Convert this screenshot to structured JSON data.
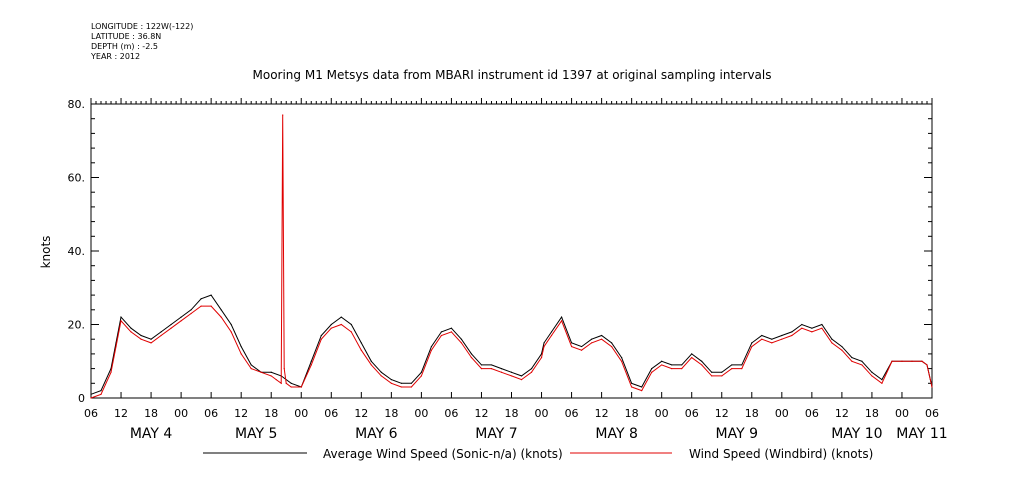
{
  "header": {
    "longitude": "LONGITUDE : 122W(-122)",
    "latitude": "LATITUDE : 36.8N",
    "depth": "DEPTH (m) : -2.5",
    "year": "YEAR : 2012"
  },
  "colors": {
    "black_series": "#000000",
    "red_series": "#e00000"
  },
  "chart_data": {
    "type": "line",
    "title": "Mooring M1 Metsys data from MBARI instrument id 1397 at original sampling intervals",
    "ylabel": "knots",
    "xlabel": "",
    "ylim": [
      0,
      80
    ],
    "xlim_hours": [
      0,
      168
    ],
    "y_ticks": [
      "0",
      "20.",
      "40.",
      "60.",
      "80."
    ],
    "hour_tick_labels": [
      "06",
      "12",
      "18",
      "00",
      "06",
      "12",
      "18",
      "00",
      "06",
      "12",
      "18",
      "00",
      "06",
      "12",
      "18",
      "00",
      "06",
      "12",
      "18",
      "00",
      "06",
      "12",
      "18",
      "00",
      "06",
      "12",
      "18",
      "00",
      "06"
    ],
    "day_labels": [
      {
        "label": "MAY  4",
        "hour": 12
      },
      {
        "label": "MAY  5",
        "hour": 33
      },
      {
        "label": "MAY  6",
        "hour": 57
      },
      {
        "label": "MAY  7",
        "hour": 81
      },
      {
        "label": "MAY  8",
        "hour": 105
      },
      {
        "label": "MAY  9",
        "hour": 129
      },
      {
        "label": "MAY 10",
        "hour": 153
      },
      {
        "label": "MAY 11",
        "hour": 166
      }
    ],
    "series": [
      {
        "name": "Average Wind Speed (Sonic-n/a) (knots)",
        "color": "#000000",
        "x_hours": [
          0,
          2,
          4,
          5,
          6,
          8,
          10,
          12,
          14,
          16,
          18,
          20,
          22,
          24,
          26,
          28,
          30,
          32,
          34,
          36,
          38,
          40,
          42,
          44,
          46,
          48,
          50,
          52,
          54,
          56,
          58,
          60,
          62,
          64,
          66,
          68,
          70,
          72,
          74,
          76,
          78,
          80,
          82,
          84,
          86,
          88,
          90,
          90.5,
          92,
          94,
          96,
          98,
          100,
          102,
          104,
          106,
          108,
          110,
          112,
          114,
          116,
          118,
          120,
          122,
          124,
          126,
          128,
          130,
          132,
          134,
          136,
          138,
          140,
          142,
          144,
          146,
          148,
          150,
          152,
          154,
          156,
          158,
          160,
          162,
          164,
          166,
          167,
          168
        ],
        "y": [
          1,
          2,
          8,
          15,
          22,
          19,
          17,
          16,
          18,
          20,
          22,
          24,
          27,
          28,
          24,
          20,
          14,
          9,
          7,
          7,
          6,
          4,
          3,
          10,
          17,
          20,
          22,
          20,
          15,
          10,
          7,
          5,
          4,
          4,
          7,
          14,
          18,
          19,
          16,
          12,
          9,
          9,
          8,
          7,
          6,
          8,
          12,
          15,
          18,
          22,
          15,
          14,
          16,
          17,
          15,
          11,
          4,
          3,
          8,
          10,
          9,
          9,
          12,
          10,
          7,
          7,
          9,
          9,
          15,
          17,
          16,
          17,
          18,
          20,
          19,
          20,
          16,
          14,
          11,
          10,
          7,
          5,
          10,
          10,
          10,
          10,
          9,
          3
        ]
      },
      {
        "name": "Wind Speed (Windbird) (knots)",
        "color": "#e00000",
        "x_hours": [
          0,
          2,
          4,
          5,
          6,
          8,
          10,
          12,
          14,
          16,
          18,
          20,
          22,
          24,
          26,
          28,
          30,
          32,
          34,
          36,
          37,
          38,
          38.3,
          38.6,
          39,
          40,
          42,
          44,
          46,
          48,
          50,
          52,
          54,
          56,
          58,
          60,
          62,
          64,
          66,
          68,
          70,
          72,
          74,
          76,
          78,
          80,
          82,
          84,
          86,
          88,
          90,
          90.5,
          92,
          94,
          96,
          98,
          100,
          102,
          104,
          106,
          108,
          110,
          112,
          114,
          116,
          118,
          120,
          122,
          124,
          126,
          128,
          130,
          132,
          134,
          136,
          138,
          140,
          142,
          144,
          146,
          148,
          150,
          152,
          154,
          156,
          158,
          160,
          162,
          164,
          166,
          167,
          168
        ],
        "y": [
          0,
          1,
          7,
          14,
          21,
          18,
          16,
          15,
          17,
          19,
          21,
          23,
          25,
          25,
          22,
          18,
          12,
          8,
          7,
          6,
          5,
          4,
          77,
          8,
          4,
          3,
          3,
          9,
          16,
          19,
          20,
          18,
          13,
          9,
          6,
          4,
          3,
          3,
          6,
          13,
          17,
          18,
          15,
          11,
          8,
          8,
          7,
          6,
          5,
          7,
          11,
          14,
          17,
          21,
          14,
          13,
          15,
          16,
          14,
          10,
          3,
          2,
          7,
          9,
          8,
          8,
          11,
          9,
          6,
          6,
          8,
          8,
          14,
          16,
          15,
          16,
          17,
          19,
          18,
          19,
          15,
          13,
          10,
          9,
          6,
          4,
          10,
          10,
          10,
          10,
          9,
          3
        ]
      }
    ],
    "legend_position": "bottom"
  }
}
